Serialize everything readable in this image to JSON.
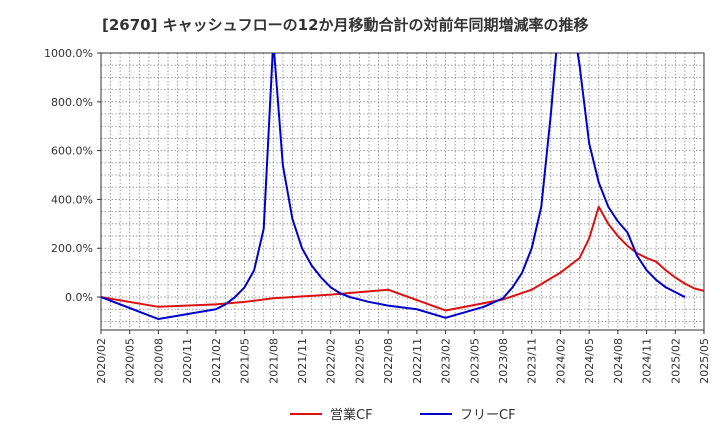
{
  "chart_data": {
    "type": "line",
    "title": "[2670]  キャッシュフローの12か月移動合計の対前年同期増減率の推移",
    "xlabel": "",
    "ylabel": "",
    "ylim": [
      -135,
      1000
    ],
    "y_ticks": [
      0,
      200,
      400,
      600,
      800,
      1000
    ],
    "y_tick_labels": [
      "0.0%",
      "200.0%",
      "400.0%",
      "600.0%",
      "800.0%",
      "1000.0%"
    ],
    "x_tick_labels": [
      "2020/02",
      "2020/05",
      "2020/08",
      "2020/11",
      "2021/02",
      "2021/05",
      "2021/08",
      "2021/11",
      "2022/02",
      "2022/05",
      "2022/08",
      "2022/11",
      "2023/02",
      "2023/05",
      "2023/08",
      "2023/11",
      "2024/02",
      "2024/05",
      "2024/08",
      "2024/11",
      "2025/02",
      "2025/05"
    ],
    "grid": true,
    "legend_position": "bottom",
    "series": [
      {
        "name": "営業CF",
        "color": "#dd1111",
        "points": [
          [
            0,
            0
          ],
          [
            6,
            -40
          ],
          [
            12,
            -30
          ],
          [
            15,
            -20
          ],
          [
            18,
            -5
          ],
          [
            24,
            10
          ],
          [
            30,
            30
          ],
          [
            36,
            -55
          ],
          [
            42,
            -10
          ],
          [
            45,
            30
          ],
          [
            48,
            100
          ],
          [
            50,
            160
          ],
          [
            51,
            240
          ],
          [
            52,
            370
          ],
          [
            53,
            300
          ],
          [
            54,
            250
          ],
          [
            55,
            210
          ],
          [
            56,
            180
          ],
          [
            57,
            160
          ],
          [
            58,
            145
          ],
          [
            59,
            110
          ],
          [
            60,
            80
          ],
          [
            61,
            55
          ],
          [
            62,
            35
          ],
          [
            63,
            25
          ],
          [
            64,
            10
          ]
        ]
      },
      {
        "name": "フリーCF",
        "color": "#0000cc",
        "points": [
          [
            0,
            0
          ],
          [
            6,
            -90
          ],
          [
            12,
            -50
          ],
          [
            13,
            -30
          ],
          [
            14,
            0
          ],
          [
            15,
            40
          ],
          [
            16,
            110
          ],
          [
            17,
            280
          ],
          [
            18,
            1050
          ],
          [
            19,
            540
          ],
          [
            20,
            320
          ],
          [
            21,
            200
          ],
          [
            22,
            130
          ],
          [
            23,
            80
          ],
          [
            24,
            40
          ],
          [
            25,
            15
          ],
          [
            26,
            0
          ],
          [
            28,
            -20
          ],
          [
            30,
            -35
          ],
          [
            33,
            -50
          ],
          [
            36,
            -85
          ],
          [
            40,
            -40
          ],
          [
            42,
            -5
          ],
          [
            43,
            40
          ],
          [
            44,
            100
          ],
          [
            45,
            200
          ],
          [
            46,
            370
          ],
          [
            47,
            750
          ],
          [
            48,
            1200
          ],
          [
            49,
            1200
          ],
          [
            50,
            950
          ],
          [
            51,
            630
          ],
          [
            52,
            470
          ],
          [
            53,
            370
          ],
          [
            54,
            310
          ],
          [
            55,
            265
          ],
          [
            56,
            170
          ],
          [
            57,
            110
          ],
          [
            58,
            70
          ],
          [
            59,
            40
          ],
          [
            60,
            20
          ],
          [
            61,
            0
          ]
        ]
      }
    ]
  }
}
